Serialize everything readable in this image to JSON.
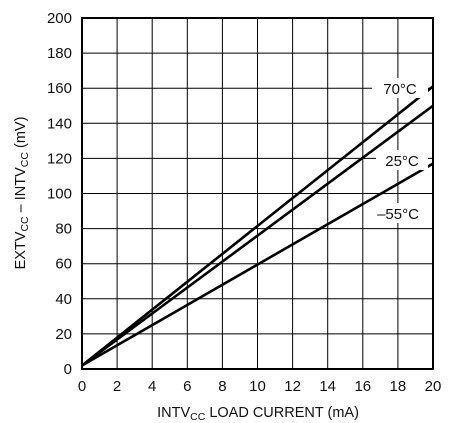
{
  "chart_data": {
    "type": "line",
    "xlim": [
      0,
      20
    ],
    "ylim": [
      0,
      200
    ],
    "x_ticks": [
      0,
      2,
      4,
      6,
      8,
      10,
      12,
      14,
      16,
      18,
      20
    ],
    "y_ticks": [
      0,
      20,
      40,
      60,
      80,
      100,
      120,
      140,
      160,
      180,
      200
    ],
    "grid": true,
    "xlabel": {
      "main": "INTV",
      "sub": "CC",
      "rest": " LOAD CURRENT (mA)"
    },
    "ylabel": {
      "p1": "EXTV",
      "s1": "CC",
      "p2": " – INTV",
      "s2": "CC",
      "p3": " (mV)"
    },
    "series": [
      {
        "name": "70°C",
        "x": [
          0,
          20
        ],
        "y": [
          2,
          161
        ]
      },
      {
        "name": "25°C",
        "x": [
          0,
          20
        ],
        "y": [
          2,
          150
        ]
      },
      {
        "name": "–55°C",
        "x": [
          0,
          20
        ],
        "y": [
          2,
          117
        ]
      }
    ]
  }
}
